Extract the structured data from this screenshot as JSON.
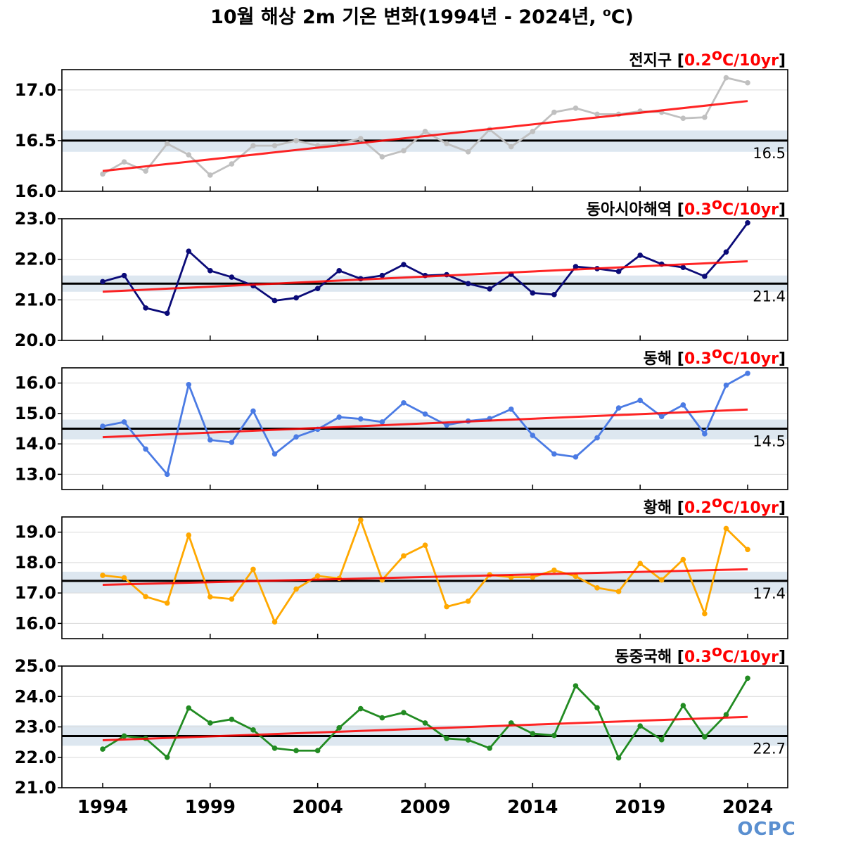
{
  "title": "10월 해상 2m 기온 변화(1994년 - 2024년, ",
  "title_unit": "o",
  "title_tail": "C)",
  "logo": "OCPC",
  "colors": {
    "trend": "#ff0000",
    "climatology": "#000000",
    "band": "#dde7f0",
    "grid": "#d9d9d9"
  },
  "chart_data": [
    {
      "type": "line",
      "name": "전지구",
      "trend_label": "0.2",
      "trend_unit": "C/10yr",
      "color": "#c0c0c0",
      "ylim": [
        16.0,
        17.2
      ],
      "yticks": [
        16.0,
        16.5,
        17.0
      ],
      "yticklabels": [
        "16.0",
        "16.5",
        "17.0"
      ],
      "clim": 16.5,
      "clim_label": "16.5",
      "band": [
        16.39,
        16.6
      ],
      "trend": [
        16.2,
        16.89
      ],
      "x": [
        1994,
        1995,
        1996,
        1997,
        1998,
        1999,
        2000,
        2001,
        2002,
        2003,
        2004,
        2005,
        2006,
        2007,
        2008,
        2009,
        2010,
        2011,
        2012,
        2013,
        2014,
        2015,
        2016,
        2017,
        2018,
        2019,
        2020,
        2021,
        2022,
        2023,
        2024
      ],
      "values": [
        16.17,
        16.29,
        16.2,
        16.47,
        16.36,
        16.16,
        16.27,
        16.45,
        16.45,
        16.5,
        16.45,
        16.47,
        16.52,
        16.34,
        16.4,
        16.59,
        16.47,
        16.39,
        16.61,
        16.44,
        16.59,
        16.78,
        16.82,
        16.76,
        16.76,
        16.79,
        16.78,
        16.72,
        16.73,
        17.12,
        17.07
      ]
    },
    {
      "type": "line",
      "name": "동아시아해역",
      "trend_label": "0.3",
      "trend_unit": "C/10yr",
      "color": "#0b0b78",
      "ylim": [
        20.0,
        23.0
      ],
      "yticks": [
        20.0,
        21.0,
        22.0,
        23.0
      ],
      "yticklabels": [
        "20.0",
        "21.0",
        "22.0",
        "23.0"
      ],
      "clim": 21.4,
      "clim_label": "21.4",
      "band": [
        21.2,
        21.6
      ],
      "trend": [
        21.2,
        21.95
      ],
      "x": [
        1994,
        1995,
        1996,
        1997,
        1998,
        1999,
        2000,
        2001,
        2002,
        2003,
        2004,
        2005,
        2006,
        2007,
        2008,
        2009,
        2010,
        2011,
        2012,
        2013,
        2014,
        2015,
        2016,
        2017,
        2018,
        2019,
        2020,
        2021,
        2022,
        2023,
        2024
      ],
      "values": [
        21.45,
        21.6,
        20.8,
        20.67,
        22.2,
        21.72,
        21.56,
        21.35,
        20.98,
        21.05,
        21.28,
        21.72,
        21.52,
        21.6,
        21.87,
        21.6,
        21.62,
        21.4,
        21.27,
        21.63,
        21.17,
        21.13,
        21.82,
        21.77,
        21.7,
        22.1,
        21.88,
        21.8,
        21.58,
        22.18,
        22.9
      ]
    },
    {
      "type": "line",
      "name": "동해",
      "trend_label": "0.3",
      "trend_unit": "C/10yr",
      "color": "#4b7be4",
      "ylim": [
        12.5,
        16.5
      ],
      "yticks": [
        13.0,
        14.0,
        15.0,
        16.0
      ],
      "yticklabels": [
        "13.0",
        "14.0",
        "15.0",
        "16.0"
      ],
      "clim": 14.5,
      "clim_label": "14.5",
      "band": [
        14.15,
        14.8
      ],
      "trend": [
        14.22,
        15.13
      ],
      "x": [
        1994,
        1995,
        1996,
        1997,
        1998,
        1999,
        2000,
        2001,
        2002,
        2003,
        2004,
        2005,
        2006,
        2007,
        2008,
        2009,
        2010,
        2011,
        2012,
        2013,
        2014,
        2015,
        2016,
        2017,
        2018,
        2019,
        2020,
        2021,
        2022,
        2023,
        2024
      ],
      "values": [
        14.58,
        14.72,
        13.83,
        13.0,
        15.95,
        14.13,
        14.05,
        15.08,
        13.67,
        14.23,
        14.48,
        14.88,
        14.82,
        14.72,
        15.35,
        14.98,
        14.62,
        14.75,
        14.83,
        15.14,
        14.28,
        13.67,
        13.57,
        14.2,
        15.18,
        15.43,
        14.9,
        15.28,
        14.33,
        15.93,
        16.32
      ]
    },
    {
      "type": "line",
      "name": "황해",
      "trend_label": "0.2",
      "trend_unit": "C/10yr",
      "color": "#ffa800",
      "ylim": [
        15.5,
        19.5
      ],
      "yticks": [
        16.0,
        17.0,
        18.0,
        19.0
      ],
      "yticklabels": [
        "16.0",
        "17.0",
        "18.0",
        "19.0"
      ],
      "clim": 17.4,
      "clim_label": "17.4",
      "band": [
        17.0,
        17.7
      ],
      "trend": [
        17.27,
        17.78
      ],
      "x": [
        1994,
        1995,
        1996,
        1997,
        1998,
        1999,
        2000,
        2001,
        2002,
        2003,
        2004,
        2005,
        2006,
        2007,
        2008,
        2009,
        2010,
        2011,
        2012,
        2013,
        2014,
        2015,
        2016,
        2017,
        2018,
        2019,
        2020,
        2021,
        2022,
        2023,
        2024
      ],
      "values": [
        17.58,
        17.5,
        16.88,
        16.67,
        18.9,
        16.87,
        16.8,
        17.78,
        16.05,
        17.13,
        17.56,
        17.48,
        19.4,
        17.43,
        18.22,
        18.57,
        16.55,
        16.73,
        17.6,
        17.52,
        17.52,
        17.75,
        17.55,
        17.17,
        17.05,
        17.97,
        17.43,
        18.1,
        16.32,
        19.12,
        18.43
      ]
    },
    {
      "type": "line",
      "name": "동중국해",
      "trend_label": "0.3",
      "trend_unit": "C/10yr",
      "color": "#228b22",
      "ylim": [
        21.0,
        25.0
      ],
      "yticks": [
        21.0,
        22.0,
        23.0,
        24.0,
        25.0
      ],
      "yticklabels": [
        "21.0",
        "22.0",
        "23.0",
        "24.0",
        "25.0"
      ],
      "clim": 22.7,
      "clim_label": "22.7",
      "band": [
        22.38,
        23.05
      ],
      "trend": [
        22.56,
        23.33
      ],
      "x": [
        1994,
        1995,
        1996,
        1997,
        1998,
        1999,
        2000,
        2001,
        2002,
        2003,
        2004,
        2005,
        2006,
        2007,
        2008,
        2009,
        2010,
        2011,
        2012,
        2013,
        2014,
        2015,
        2016,
        2017,
        2018,
        2019,
        2020,
        2021,
        2022,
        2023,
        2024
      ],
      "values": [
        22.27,
        22.7,
        22.62,
        22.0,
        23.62,
        23.13,
        23.25,
        22.9,
        22.3,
        22.22,
        22.22,
        22.97,
        23.6,
        23.3,
        23.47,
        23.13,
        22.62,
        22.57,
        22.3,
        23.13,
        22.78,
        22.72,
        24.35,
        23.63,
        21.98,
        23.03,
        22.58,
        23.7,
        22.67,
        23.4,
        24.6
      ]
    }
  ],
  "xticks": [
    "1994",
    "1999",
    "2004",
    "2009",
    "2014",
    "2019",
    "2024"
  ]
}
